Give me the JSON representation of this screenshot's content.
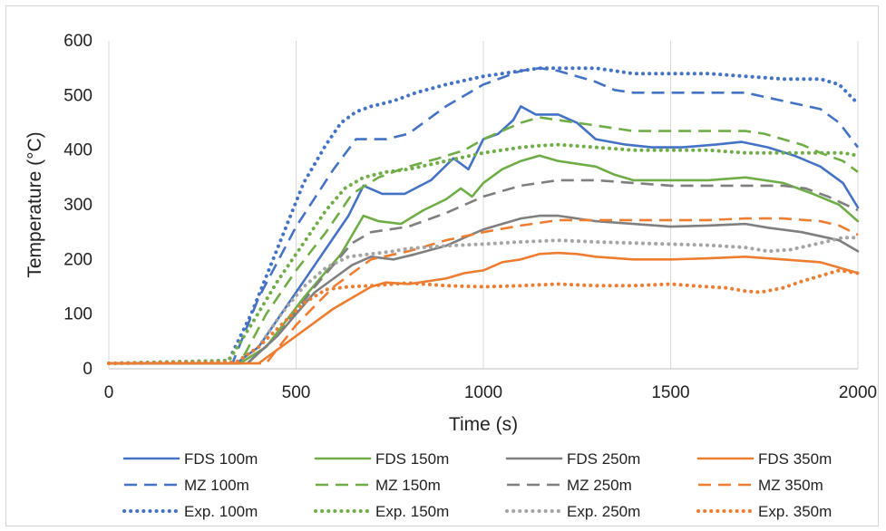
{
  "chart_data": {
    "type": "line",
    "xlabel": "Time (s)",
    "ylabel": "Temperature (°C)",
    "xlim": [
      0,
      2000
    ],
    "ylim": [
      0,
      600
    ],
    "xticks": [
      0,
      500,
      1000,
      1500,
      2000
    ],
    "yticks": [
      0,
      100,
      200,
      300,
      400,
      500,
      600
    ],
    "grid": "vertical",
    "legend_position": "bottom",
    "series": [
      {
        "name": "FDS 100m",
        "color": "#4472c4",
        "style": "solid",
        "x": [
          0,
          340,
          400,
          460,
          560,
          640,
          680,
          730,
          790,
          860,
          920,
          960,
          1000,
          1040,
          1080,
          1100,
          1140,
          1200,
          1250,
          1300,
          1380,
          1450,
          1530,
          1620,
          1690,
          1760,
          1830,
          1900,
          1960,
          2000
        ],
        "y": [
          10,
          10,
          40,
          100,
          200,
          280,
          335,
          320,
          320,
          345,
          385,
          365,
          420,
          430,
          455,
          480,
          465,
          465,
          450,
          420,
          410,
          405,
          405,
          410,
          415,
          405,
          390,
          370,
          340,
          295
        ]
      },
      {
        "name": "FDS 150m",
        "color": "#70ad47",
        "style": "solid",
        "x": [
          0,
          350,
          420,
          520,
          620,
          680,
          720,
          780,
          840,
          900,
          940,
          970,
          1000,
          1050,
          1100,
          1150,
          1200,
          1300,
          1350,
          1400,
          1500,
          1600,
          1700,
          1800,
          1880,
          1950,
          2000
        ],
        "y": [
          10,
          10,
          40,
          130,
          210,
          280,
          270,
          265,
          290,
          310,
          330,
          315,
          340,
          365,
          380,
          390,
          380,
          370,
          355,
          345,
          345,
          345,
          350,
          340,
          320,
          300,
          270
        ]
      },
      {
        "name": "FDS 250m",
        "color": "#7f7f7f",
        "style": "solid",
        "x": [
          0,
          370,
          450,
          550,
          650,
          700,
          760,
          820,
          900,
          950,
          1000,
          1050,
          1100,
          1150,
          1200,
          1250,
          1300,
          1400,
          1500,
          1600,
          1700,
          1760,
          1850,
          1950,
          2000
        ],
        "y": [
          10,
          10,
          60,
          140,
          190,
          205,
          200,
          210,
          225,
          240,
          255,
          265,
          275,
          280,
          280,
          275,
          270,
          265,
          260,
          262,
          265,
          258,
          250,
          235,
          215
        ]
      },
      {
        "name": "FDS 350m",
        "color": "#ed7d31",
        "style": "solid",
        "x": [
          0,
          400,
          500,
          600,
          700,
          740,
          800,
          900,
          950,
          1000,
          1050,
          1100,
          1150,
          1200,
          1250,
          1300,
          1400,
          1500,
          1600,
          1700,
          1800,
          1900,
          1950,
          2000
        ],
        "y": [
          10,
          10,
          60,
          110,
          150,
          158,
          155,
          165,
          175,
          180,
          195,
          200,
          210,
          212,
          210,
          205,
          200,
          200,
          202,
          205,
          200,
          195,
          185,
          175
        ]
      },
      {
        "name": "MZ 100m",
        "color": "#4472c4",
        "style": "dashed",
        "x": [
          0,
          330,
          400,
          500,
          600,
          660,
          740,
          800,
          900,
          1000,
          1100,
          1150,
          1200,
          1250,
          1300,
          1350,
          1400,
          1500,
          1600,
          1700,
          1800,
          1900,
          1950,
          2000
        ],
        "y": [
          10,
          10,
          130,
          260,
          365,
          420,
          420,
          430,
          480,
          520,
          545,
          550,
          545,
          535,
          525,
          510,
          505,
          505,
          505,
          505,
          490,
          475,
          450,
          405
        ]
      },
      {
        "name": "MZ 150m",
        "color": "#70ad47",
        "style": "dashed",
        "x": [
          0,
          350,
          420,
          500,
          580,
          650,
          720,
          800,
          880,
          950,
          1000,
          1100,
          1150,
          1200,
          1300,
          1400,
          1500,
          1600,
          1700,
          1750,
          1800,
          1850,
          1900,
          1960,
          2000
        ],
        "y": [
          10,
          10,
          100,
          180,
          250,
          320,
          350,
          370,
          385,
          400,
          420,
          450,
          460,
          455,
          445,
          435,
          435,
          435,
          435,
          430,
          420,
          410,
          395,
          380,
          360
        ]
      },
      {
        "name": "MZ 250m",
        "color": "#7f7f7f",
        "style": "dashed",
        "x": [
          0,
          370,
          450,
          550,
          650,
          700,
          800,
          900,
          1000,
          1100,
          1150,
          1200,
          1300,
          1400,
          1500,
          1600,
          1700,
          1800,
          1860,
          1920,
          2000
        ],
        "y": [
          10,
          10,
          60,
          150,
          230,
          250,
          260,
          285,
          315,
          335,
          340,
          345,
          345,
          340,
          335,
          335,
          335,
          335,
          330,
          315,
          290
        ]
      },
      {
        "name": "MZ 350m",
        "color": "#ed7d31",
        "style": "dashed",
        "x": [
          0,
          420,
          500,
          600,
          700,
          800,
          900,
          1000,
          1100,
          1200,
          1300,
          1400,
          1500,
          1600,
          1700,
          1800,
          1900,
          1950,
          2000
        ],
        "y": [
          10,
          10,
          80,
          150,
          200,
          215,
          235,
          250,
          262,
          272,
          272,
          272,
          272,
          272,
          275,
          275,
          270,
          262,
          245
        ]
      },
      {
        "name": "Exp. 100m",
        "color": "#4472c4",
        "style": "dotted",
        "x": [
          0,
          320,
          380,
          450,
          520,
          580,
          620,
          660,
          700,
          760,
          820,
          900,
          1000,
          1100,
          1150,
          1200,
          1300,
          1400,
          1500,
          1600,
          1700,
          1800,
          1900,
          1950,
          2000
        ],
        "y": [
          10,
          15,
          100,
          220,
          340,
          410,
          450,
          470,
          480,
          490,
          505,
          520,
          535,
          545,
          550,
          550,
          550,
          540,
          540,
          540,
          535,
          530,
          530,
          520,
          485
        ]
      },
      {
        "name": "Exp. 150m",
        "color": "#70ad47",
        "style": "dotted",
        "x": [
          0,
          320,
          380,
          450,
          520,
          580,
          630,
          680,
          740,
          800,
          900,
          1000,
          1100,
          1150,
          1200,
          1300,
          1400,
          1500,
          1600,
          1700,
          1800,
          1900,
          1960,
          2000
        ],
        "y": [
          10,
          15,
          80,
          160,
          230,
          290,
          330,
          350,
          360,
          365,
          380,
          395,
          405,
          408,
          410,
          405,
          400,
          400,
          400,
          395,
          395,
          395,
          395,
          390
        ]
      },
      {
        "name": "Exp. 250m",
        "color": "#a5a5a5",
        "style": "dotted",
        "x": [
          0,
          340,
          400,
          460,
          520,
          580,
          640,
          700,
          760,
          800,
          900,
          1000,
          1100,
          1200,
          1300,
          1400,
          1500,
          1600,
          1700,
          1760,
          1820,
          1900,
          1960,
          2000
        ],
        "y": [
          10,
          12,
          40,
          100,
          150,
          185,
          205,
          210,
          215,
          220,
          225,
          228,
          232,
          235,
          232,
          230,
          228,
          226,
          222,
          215,
          218,
          230,
          240,
          240
        ]
      },
      {
        "name": "Exp. 350m",
        "color": "#ed7d31",
        "style": "dotted",
        "x": [
          0,
          340,
          400,
          460,
          520,
          580,
          640,
          700,
          760,
          800,
          900,
          1000,
          1100,
          1200,
          1300,
          1400,
          1500,
          1600,
          1650,
          1700,
          1740,
          1800,
          1850,
          1900,
          1950,
          2000
        ],
        "y": [
          10,
          12,
          40,
          80,
          120,
          145,
          150,
          152,
          155,
          157,
          152,
          150,
          152,
          155,
          152,
          152,
          155,
          150,
          148,
          142,
          140,
          148,
          160,
          170,
          180,
          175
        ]
      }
    ]
  }
}
